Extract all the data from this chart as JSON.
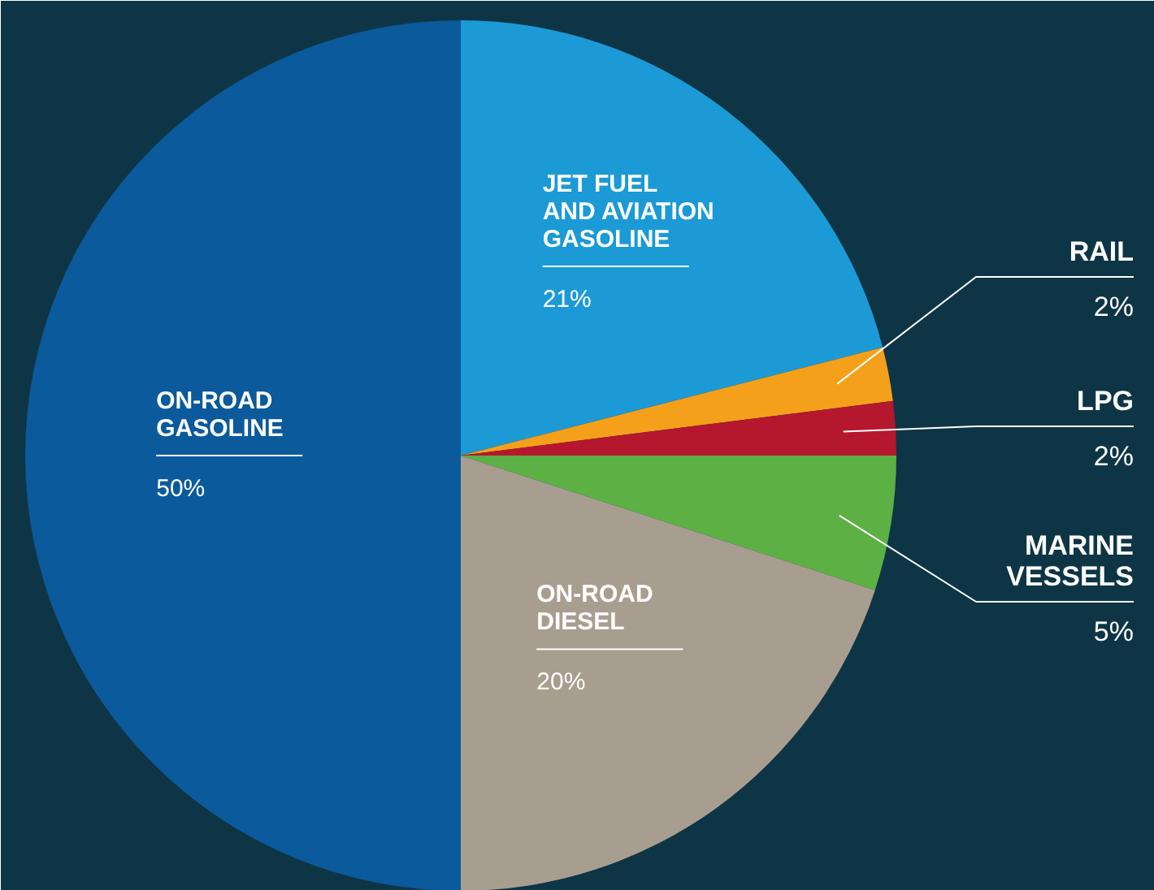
{
  "chart_data": {
    "type": "pie",
    "categories": [
      "JET FUEL\nAND AVIATION\nGASOLINE",
      "RAIL",
      "LPG",
      "MARINE\nVESSELS",
      "ON-ROAD\nDIESEL",
      "ON-ROAD\nGASOLINE"
    ],
    "values": [
      21,
      2,
      2,
      5,
      20,
      50
    ],
    "value_labels": [
      "21%",
      "2%",
      "2%",
      "5%",
      "20%",
      "50%"
    ],
    "colors": [
      "#1b9ad6",
      "#f5a01a",
      "#b5172e",
      "#5cb044",
      "#a89e90",
      "#0a5a9c"
    ]
  }
}
